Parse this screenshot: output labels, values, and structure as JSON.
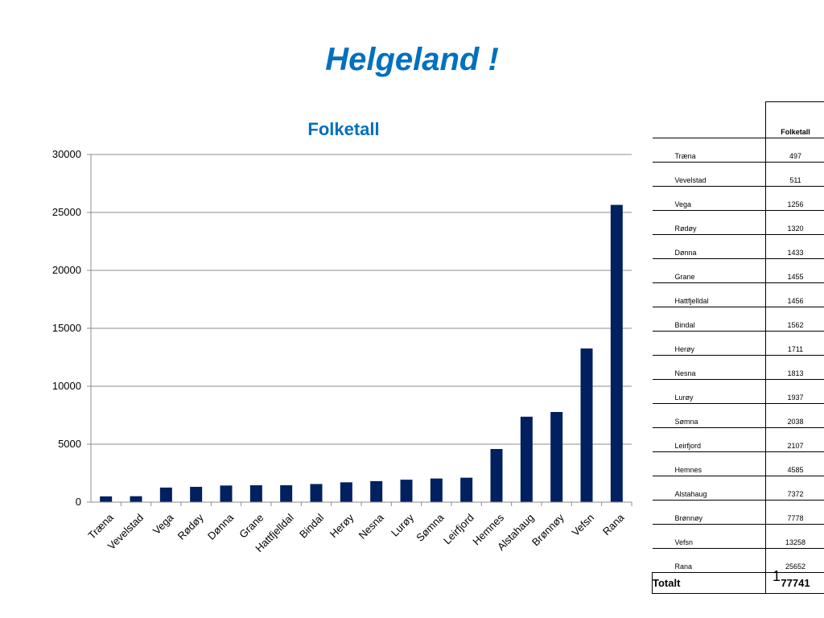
{
  "slide": {
    "title": "Helgeland !",
    "page_number": "1"
  },
  "chart_data": {
    "type": "bar",
    "title": "Folketall",
    "xlabel": "",
    "ylabel": "",
    "categories": [
      "Træna",
      "Vevelstad",
      "Vega",
      "Rødøy",
      "Dønna",
      "Grane",
      "Hattfjelldal",
      "Bindal",
      "Herøy",
      "Nesna",
      "Lurøy",
      "Sømna",
      "Leirfjord",
      "Hemnes",
      "Alstahaug",
      "Brønnøy",
      "Vefsn",
      "Rana"
    ],
    "values": [
      497,
      511,
      1256,
      1320,
      1433,
      1455,
      1456,
      1562,
      1711,
      1813,
      1937,
      2038,
      2107,
      4585,
      7372,
      7778,
      13258,
      25652
    ],
    "ylim": [
      0,
      30000
    ],
    "yticks": [
      0,
      5000,
      10000,
      15000,
      20000,
      25000,
      30000
    ],
    "grid": true,
    "legend": "none",
    "bar_color": "#002060",
    "title_color": "#0070c0"
  },
  "table": {
    "header": "Folketall",
    "rows": [
      {
        "name": "Træna",
        "value": "497"
      },
      {
        "name": "Vevelstad",
        "value": "511"
      },
      {
        "name": "Vega",
        "value": "1256"
      },
      {
        "name": "Rødøy",
        "value": "1320"
      },
      {
        "name": "Dønna",
        "value": "1433"
      },
      {
        "name": "Grane",
        "value": "1455"
      },
      {
        "name": "Hattfjelldal",
        "value": "1456"
      },
      {
        "name": "Bindal",
        "value": "1562"
      },
      {
        "name": "Herøy",
        "value": "1711"
      },
      {
        "name": "Nesna",
        "value": "1813"
      },
      {
        "name": "Lurøy",
        "value": "1937"
      },
      {
        "name": "Sømna",
        "value": "2038"
      },
      {
        "name": "Leirfjord",
        "value": "2107"
      },
      {
        "name": "Hemnes",
        "value": "4585"
      },
      {
        "name": "Alstahaug",
        "value": "7372"
      },
      {
        "name": "Brønnøy",
        "value": "7778"
      },
      {
        "name": "Vefsn",
        "value": "13258"
      },
      {
        "name": "Rana",
        "value": "25652"
      }
    ],
    "total_label": "Totalt",
    "total_value": "77741"
  }
}
